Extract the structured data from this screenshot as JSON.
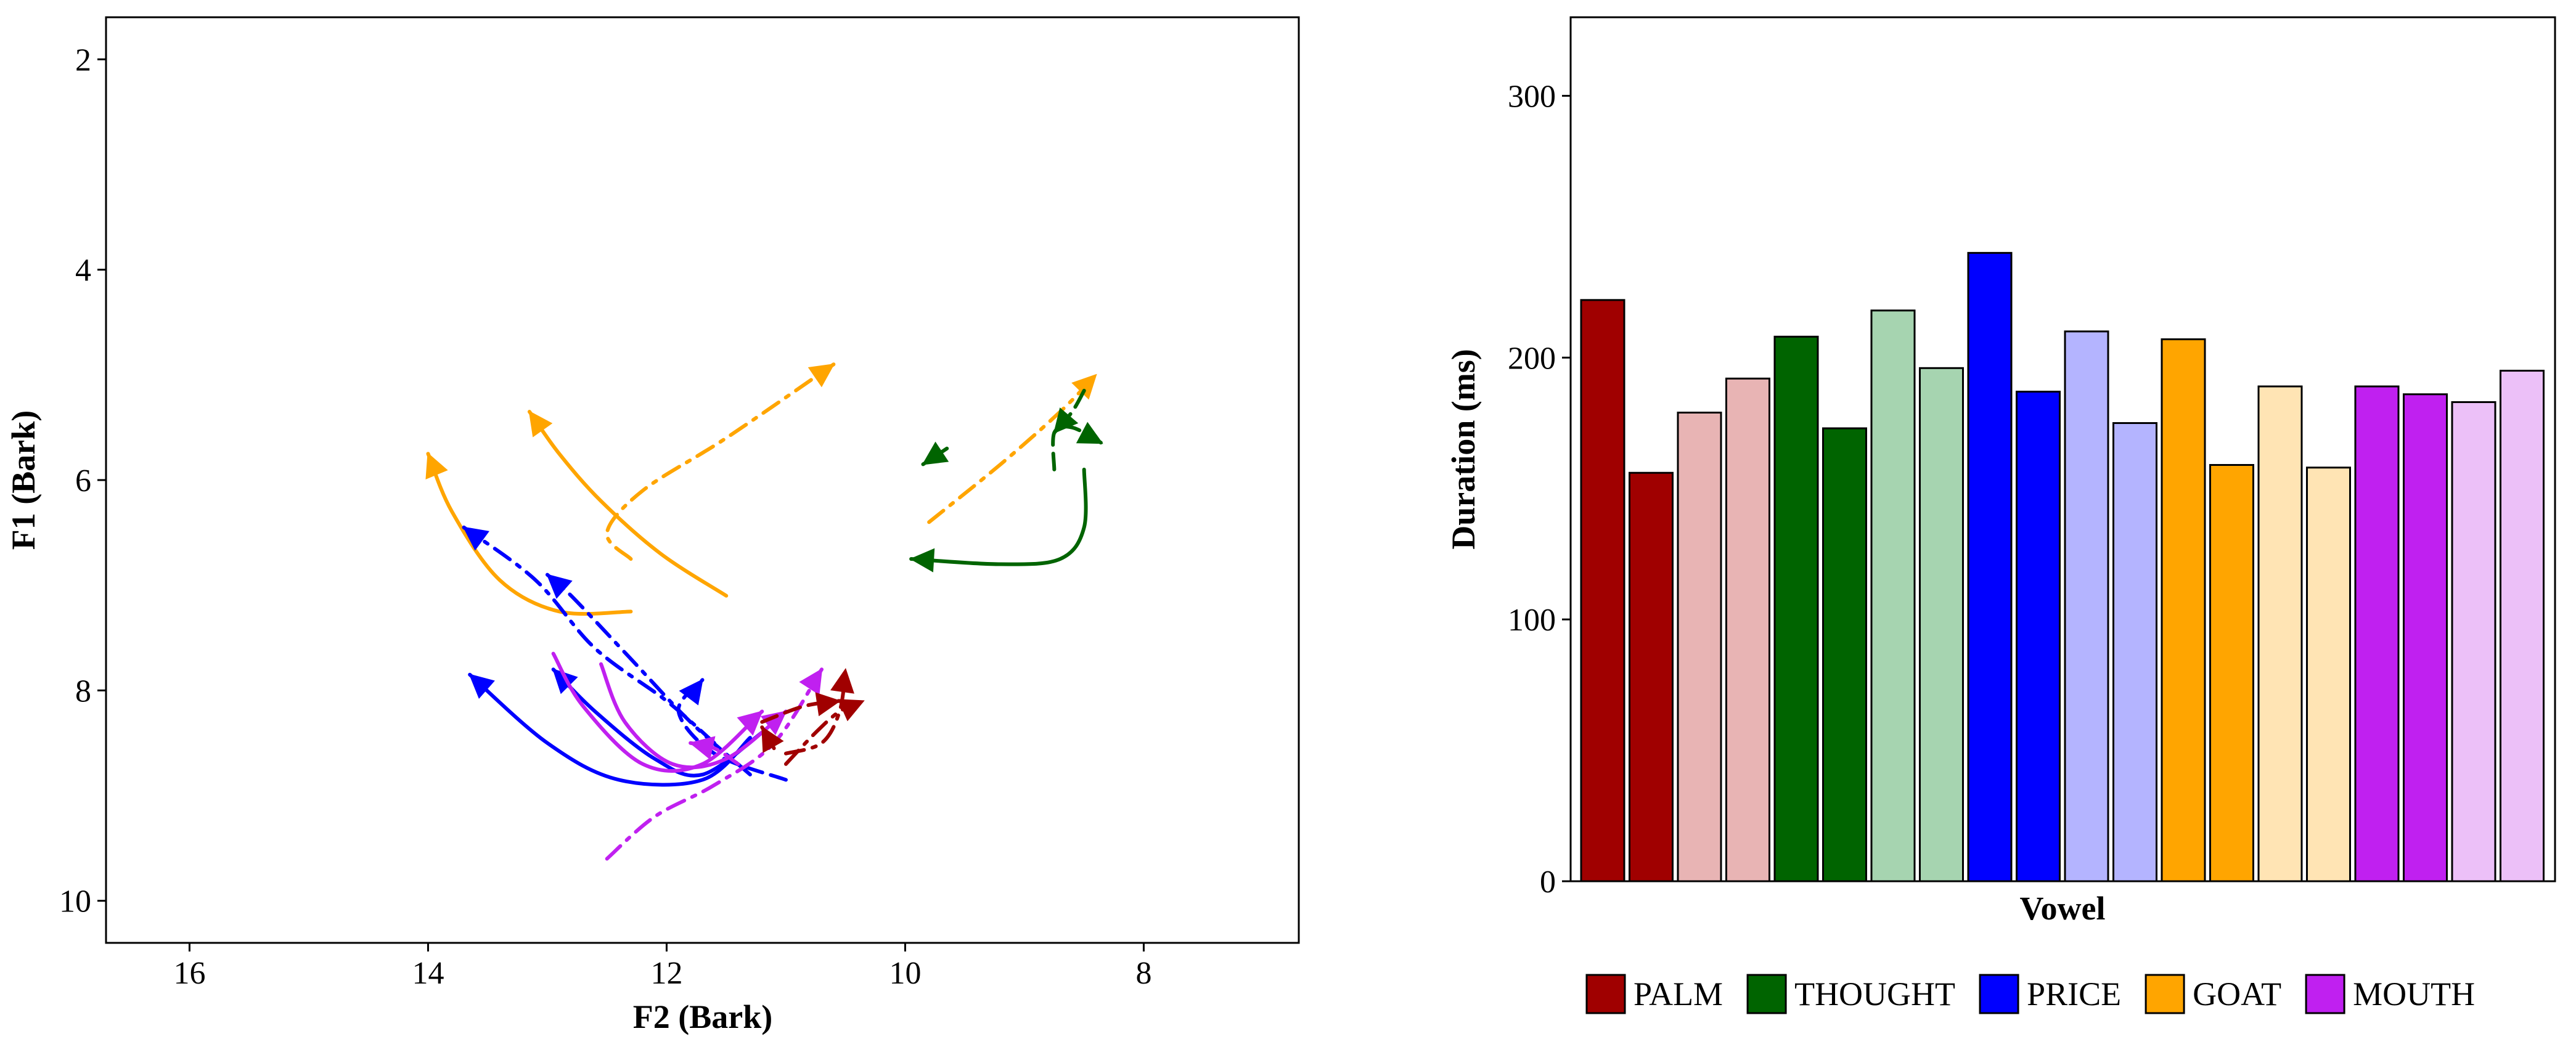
{
  "chart_data": [
    {
      "type": "line",
      "title": "",
      "xlabel": "F2 (Bark)",
      "ylabel": "F1 (Bark)",
      "x_reversed": true,
      "y_reversed": true,
      "xlim": [
        16.7,
        6.7
      ],
      "ylim": [
        1.6,
        10.4
      ],
      "x_ticks": [
        16,
        14,
        12,
        10,
        8
      ],
      "y_ticks": [
        2,
        4,
        6,
        8,
        10
      ],
      "series": [
        {
          "name": "GOAT solid 1",
          "vowel": "GOAT",
          "style": "solid",
          "points": [
            [
              12.3,
              7.25
            ],
            [
              12.9,
              7.25
            ],
            [
              13.4,
              6.95
            ],
            [
              13.8,
              6.3
            ],
            [
              14.0,
              5.75
            ]
          ]
        },
        {
          "name": "GOAT solid 2",
          "vowel": "GOAT",
          "style": "solid",
          "points": [
            [
              11.5,
              7.1
            ],
            [
              12.05,
              6.7
            ],
            [
              12.55,
              6.2
            ],
            [
              12.9,
              5.75
            ],
            [
              13.15,
              5.35
            ]
          ]
        },
        {
          "name": "GOAT dashdot 1",
          "vowel": "GOAT",
          "style": "dashdot",
          "points": [
            [
              12.3,
              6.75
            ],
            [
              12.5,
              6.5
            ],
            [
              12.2,
              6.1
            ],
            [
              11.5,
              5.6
            ],
            [
              10.6,
              4.9
            ]
          ]
        },
        {
          "name": "GOAT dashdot 2",
          "vowel": "GOAT",
          "style": "dashdot",
          "points": [
            [
              9.8,
              6.4
            ],
            [
              9.2,
              5.85
            ],
            [
              8.7,
              5.35
            ],
            [
              8.4,
              5.0
            ]
          ]
        },
        {
          "name": "THOUGHT solid",
          "vowel": "THOUGHT",
          "style": "solid",
          "points": [
            [
              8.5,
              5.9
            ],
            [
              8.5,
              6.45
            ],
            [
              8.7,
              6.75
            ],
            [
              9.2,
              6.8
            ],
            [
              9.95,
              6.75
            ]
          ]
        },
        {
          "name": "THOUGHT dashed",
          "vowel": "THOUGHT",
          "style": "dashed",
          "points": [
            [
              8.75,
              5.9
            ],
            [
              8.75,
              5.55
            ],
            [
              8.6,
              5.5
            ],
            [
              8.35,
              5.65
            ]
          ]
        },
        {
          "name": "THOUGHT dashdot",
          "vowel": "THOUGHT",
          "style": "dashdot",
          "points": [
            [
              8.5,
              5.15
            ],
            [
              8.6,
              5.35
            ],
            [
              8.75,
              5.55
            ]
          ]
        },
        {
          "name": "THOUGHT short",
          "vowel": "THOUGHT",
          "style": "dashdot",
          "points": [
            [
              9.65,
              5.7
            ],
            [
              9.85,
              5.85
            ]
          ]
        },
        {
          "name": "PRICE solid 1",
          "vowel": "PRICE",
          "style": "solid",
          "points": [
            [
              11.3,
              8.45
            ],
            [
              11.7,
              8.85
            ],
            [
              12.4,
              8.85
            ],
            [
              13.0,
              8.5
            ],
            [
              13.65,
              7.85
            ]
          ]
        },
        {
          "name": "PRICE solid 2",
          "vowel": "PRICE",
          "style": "solid",
          "points": [
            [
              11.2,
              8.4
            ],
            [
              11.7,
              8.8
            ],
            [
              12.1,
              8.65
            ],
            [
              12.6,
              8.2
            ],
            [
              12.95,
              7.8
            ]
          ]
        },
        {
          "name": "PRICE dashdot 1",
          "vowel": "PRICE",
          "style": "dashdot",
          "points": [
            [
              11.6,
              8.5
            ],
            [
              12.0,
              8.1
            ],
            [
              12.6,
              7.6
            ],
            [
              13.1,
              6.95
            ],
            [
              13.7,
              6.45
            ]
          ]
        },
        {
          "name": "PRICE dashdot 2",
          "vowel": "PRICE",
          "style": "dashdot",
          "points": [
            [
              11.3,
              8.8
            ],
            [
              11.8,
              8.3
            ],
            [
              12.3,
              7.7
            ],
            [
              12.8,
              7.1
            ],
            [
              13.0,
              6.9
            ]
          ]
        },
        {
          "name": "PRICE dashed",
          "vowel": "PRICE",
          "style": "dashed",
          "points": [
            [
              11.0,
              8.85
            ],
            [
              11.6,
              8.6
            ],
            [
              11.9,
              8.2
            ],
            [
              11.7,
              7.9
            ]
          ]
        },
        {
          "name": "MOUTH solid 1",
          "vowel": "MOUTH",
          "style": "solid",
          "points": [
            [
              12.55,
              7.75
            ],
            [
              12.35,
              8.3
            ],
            [
              11.95,
              8.7
            ],
            [
              11.5,
              8.65
            ],
            [
              11.0,
              8.2
            ]
          ]
        },
        {
          "name": "MOUTH solid 2",
          "vowel": "MOUTH",
          "style": "solid",
          "points": [
            [
              12.95,
              7.65
            ],
            [
              12.7,
              8.15
            ],
            [
              12.2,
              8.7
            ],
            [
              11.7,
              8.7
            ],
            [
              11.2,
              8.2
            ]
          ]
        },
        {
          "name": "MOUTH dashdot 1",
          "vowel": "MOUTH",
          "style": "dashdot",
          "points": [
            [
              12.5,
              9.6
            ],
            [
              12.1,
              9.2
            ],
            [
              11.6,
              8.9
            ],
            [
              11.1,
              8.5
            ],
            [
              10.7,
              7.8
            ]
          ]
        },
        {
          "name": "MOUTH dashed",
          "vowel": "MOUTH",
          "style": "dashed",
          "points": [
            [
              11.4,
              8.7
            ],
            [
              11.6,
              8.55
            ],
            [
              11.8,
              8.5
            ]
          ]
        },
        {
          "name": "PALM dashdot 1",
          "vowel": "PALM",
          "style": "dashdot",
          "points": [
            [
              11.0,
              8.7
            ],
            [
              10.75,
              8.4
            ],
            [
              10.55,
              8.2
            ],
            [
              10.35,
              8.1
            ]
          ]
        },
        {
          "name": "PALM dashdot 2",
          "vowel": "PALM",
          "style": "dashdot",
          "points": [
            [
              11.0,
              8.6
            ],
            [
              10.7,
              8.5
            ],
            [
              10.55,
              8.2
            ],
            [
              10.5,
              7.8
            ]
          ]
        },
        {
          "name": "PALM solid",
          "vowel": "PALM",
          "style": "solid",
          "points": [
            [
              11.1,
              8.55
            ],
            [
              11.2,
              8.35
            ]
          ]
        },
        {
          "name": "PALM dashed",
          "vowel": "PALM",
          "style": "dashed",
          "points": [
            [
              11.2,
              8.3
            ],
            [
              10.85,
              8.15
            ],
            [
              10.55,
              8.1
            ]
          ]
        }
      ]
    },
    {
      "type": "bar",
      "title": "",
      "xlabel": "Vowel",
      "ylabel": "Duration (ms)",
      "ylim": [
        0,
        330
      ],
      "y_ticks": [
        0,
        100,
        200,
        300
      ],
      "categories": [
        "PALM",
        "PALM",
        "PALM",
        "PALM",
        "THOUGHT",
        "THOUGHT",
        "THOUGHT",
        "THOUGHT",
        "PRICE",
        "PRICE",
        "PRICE",
        "PRICE",
        "GOAT",
        "GOAT",
        "GOAT",
        "GOAT",
        "MOUTH",
        "MOUTH",
        "MOUTH",
        "MOUTH"
      ],
      "values": [
        222,
        156,
        179,
        192,
        208,
        173,
        218,
        196,
        240,
        187,
        210,
        175,
        207,
        159,
        189,
        158,
        189,
        186,
        183,
        195
      ],
      "colors": [
        "#a00000",
        "#a00000",
        "#e8b4b4",
        "#e8b4b4",
        "#006400",
        "#006400",
        "#a6d4b0",
        "#a6d4b0",
        "#0000ff",
        "#0000ff",
        "#b4b4ff",
        "#b4b4ff",
        "#ffa500",
        "#ffa500",
        "#ffe4b4",
        "#ffe4b4",
        "#c020f0",
        "#c020f0",
        "#ecc0f8",
        "#ecc0f8"
      ]
    }
  ],
  "legend": [
    {
      "label": "PALM",
      "color": "#a00000"
    },
    {
      "label": "THOUGHT",
      "color": "#006400"
    },
    {
      "label": "PRICE",
      "color": "#0000ff"
    },
    {
      "label": "GOAT",
      "color": "#ffa500"
    },
    {
      "label": "MOUTH",
      "color": "#c020f0"
    }
  ],
  "vowel_colors": {
    "PALM": "#a00000",
    "THOUGHT": "#006400",
    "PRICE": "#0000ff",
    "GOAT": "#ffa500",
    "MOUTH": "#c020f0"
  }
}
